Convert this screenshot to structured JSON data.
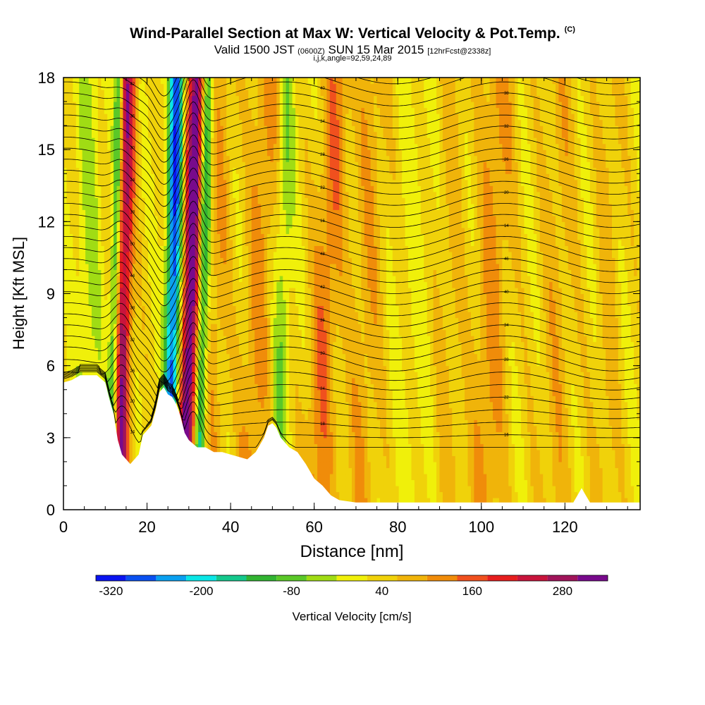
{
  "header": {
    "title": "Wind-Parallel Section at Max W: Vertical Velocity & Pot.Temp.",
    "copyright": "(C)",
    "valid_prefix": "Valid 1500 JST",
    "valid_utc": "(0600Z)",
    "valid_date": "SUN 15 Mar 2015",
    "forecast": "[12hrFcst@2338z]",
    "indices": "i,j,k,angle=92,59,24,89"
  },
  "colors": {
    "bins": [
      "#0a14f0",
      "#0a50f0",
      "#0aa0f0",
      "#0ae6e6",
      "#14c88c",
      "#32b432",
      "#5ac828",
      "#a0dc14",
      "#f0f00a",
      "#f0d20a",
      "#f0b40a",
      "#f08c0a",
      "#f0501e",
      "#e61e1e",
      "#c8143c",
      "#a0145a",
      "#780a8c"
    ],
    "bin_bounds": [
      -320,
      -280,
      -240,
      -200,
      -160,
      -120,
      -80,
      -40,
      0,
      40,
      80,
      120,
      160,
      200,
      240,
      280,
      320
    ]
  },
  "chart_data": {
    "type": "heatmap",
    "title": "Wind-Parallel Section at Max W: Vertical Velocity & Pot.Temp.",
    "xlabel": "Distance [nm]",
    "ylabel": "Height [Kft MSL]",
    "xlim": [
      0,
      138
    ],
    "ylim": [
      0,
      18
    ],
    "xticks": [
      "0",
      "20",
      "40",
      "60",
      "80",
      "100",
      "120"
    ],
    "yticks": [
      "0",
      "3",
      "6",
      "9",
      "12",
      "15",
      "18"
    ],
    "colorbar": {
      "label": "Vertical Velocity [cm/s]",
      "min": -340,
      "max": 340,
      "step": 40,
      "tick_labels": [
        "-320",
        "-200",
        "-80",
        "40",
        "160",
        "280"
      ],
      "tick_values": [
        -320,
        -200,
        -80,
        40,
        160,
        280
      ]
    },
    "terrain_kft": [
      [
        0,
        5.3
      ],
      [
        2,
        5.4
      ],
      [
        4,
        5.6
      ],
      [
        8,
        5.6
      ],
      [
        10,
        5.3
      ],
      [
        11,
        4.6
      ],
      [
        12,
        4.0
      ],
      [
        13,
        2.9
      ],
      [
        14,
        2.3
      ],
      [
        16,
        1.9
      ],
      [
        18,
        2.3
      ],
      [
        19,
        3.1
      ],
      [
        21,
        3.5
      ],
      [
        22,
        4.1
      ],
      [
        23,
        4.9
      ],
      [
        24,
        5.1
      ],
      [
        25,
        4.8
      ],
      [
        26,
        4.7
      ],
      [
        27,
        4.4
      ],
      [
        28,
        3.9
      ],
      [
        29,
        3.2
      ],
      [
        30,
        2.9
      ],
      [
        32,
        2.6
      ],
      [
        34,
        2.6
      ],
      [
        36,
        2.4
      ],
      [
        38,
        2.4
      ],
      [
        40,
        2.3
      ],
      [
        42,
        2.2
      ],
      [
        44,
        2.1
      ],
      [
        46,
        2.4
      ],
      [
        48,
        3.0
      ],
      [
        49,
        3.5
      ],
      [
        50,
        3.6
      ],
      [
        51,
        3.4
      ],
      [
        52,
        3.0
      ],
      [
        54,
        2.6
      ],
      [
        56,
        2.4
      ],
      [
        58,
        1.9
      ],
      [
        60,
        1.3
      ],
      [
        62,
        1.0
      ],
      [
        64,
        0.6
      ],
      [
        66,
        0.4
      ],
      [
        70,
        0.3
      ],
      [
        80,
        0.3
      ],
      [
        90,
        0.3
      ],
      [
        100,
        0.3
      ],
      [
        110,
        0.3
      ],
      [
        120,
        0.3
      ],
      [
        122,
        0.3
      ],
      [
        123,
        0.6
      ],
      [
        124,
        0.9
      ],
      [
        125,
        0.6
      ],
      [
        126,
        0.3
      ],
      [
        138,
        0.3
      ]
    ],
    "wave_bands": [
      {
        "x": 14,
        "v": 260,
        "w": 2.0,
        "tilt": 0.1
      },
      {
        "x": 30,
        "v": 320,
        "w": 2.2,
        "tilt": 0.17
      },
      {
        "x": 12,
        "v": -200,
        "w": 1.2,
        "tilt": 0.12
      },
      {
        "x": 26,
        "v": -320,
        "w": 1.8,
        "tilt": 0.1
      },
      {
        "x": 33,
        "v": -220,
        "w": 1.4,
        "tilt": 0.12
      },
      {
        "x": 36,
        "v": 60,
        "w": 3.0,
        "tilt": 0.2
      },
      {
        "x": 46,
        "v": 80,
        "w": 3.5,
        "tilt": 0.25
      },
      {
        "x": 52,
        "v": -80,
        "w": 2.0,
        "tilt": 0.15
      },
      {
        "x": 62,
        "v": 100,
        "w": 3.5,
        "tilt": 0.3
      },
      {
        "x": 72,
        "v": 60,
        "w": 4.0,
        "tilt": 0.2
      },
      {
        "x": 92,
        "v": 40,
        "w": 3.5,
        "tilt": 0.1
      },
      {
        "x": 102,
        "v": 80,
        "w": 4.0,
        "tilt": 0.2
      },
      {
        "x": 118,
        "v": 50,
        "w": 4.0,
        "tilt": 0.1
      },
      {
        "x": 130,
        "v": 40,
        "w": 3.0,
        "tilt": 0.1
      },
      {
        "x": 6,
        "v": -60,
        "w": 3.0,
        "tilt": 0.0
      },
      {
        "x": 84,
        "v": -20,
        "w": 5.0,
        "tilt": 0.0
      }
    ],
    "isentrope_count": 36,
    "isentrope_labels": [
      "14",
      "16",
      "18",
      "20",
      "22",
      "24",
      "26",
      "28",
      "30",
      "32",
      "34",
      "36",
      "38",
      "40",
      "42",
      "44",
      "46",
      "48",
      "50"
    ]
  }
}
